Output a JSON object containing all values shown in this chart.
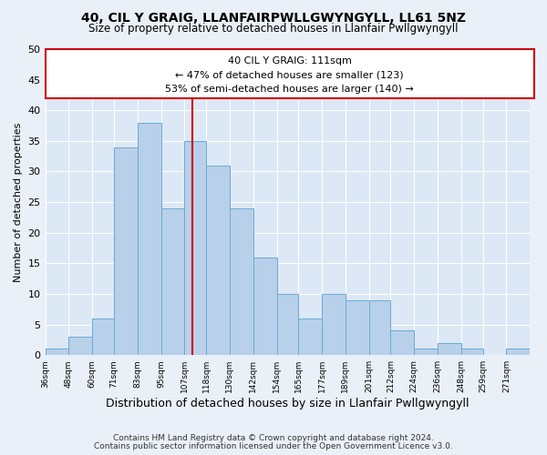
{
  "title": "40, CIL Y GRAIG, LLANFAIRPWLLGWYNGYLL, LL61 5NZ",
  "subtitle": "Size of property relative to detached houses in Llanfair Pwllgwyngyll",
  "xlabel": "Distribution of detached houses by size in Llanfair Pwllgwyngyll",
  "ylabel": "Number of detached properties",
  "bin_starts": [
    36,
    48,
    60,
    71,
    83,
    95,
    107,
    118,
    130,
    142,
    154,
    165,
    177,
    189,
    201,
    212,
    224,
    236,
    248,
    259,
    271
  ],
  "bin_labels": [
    "36sqm",
    "48sqm",
    "60sqm",
    "71sqm",
    "83sqm",
    "95sqm",
    "107sqm",
    "118sqm",
    "130sqm",
    "142sqm",
    "154sqm",
    "165sqm",
    "177sqm",
    "189sqm",
    "201sqm",
    "212sqm",
    "224sqm",
    "236sqm",
    "248sqm",
    "259sqm",
    "271sqm"
  ],
  "bar_heights": [
    1,
    3,
    6,
    34,
    38,
    24,
    35,
    31,
    24,
    16,
    10,
    6,
    10,
    9,
    9,
    4,
    1,
    2,
    1,
    0,
    1
  ],
  "bar_color": "#b8d0ea",
  "bar_edge_color": "#6aaad4",
  "vline_x": 111,
  "vline_color": "#cc0000",
  "annotation_line1": "40 CIL Y GRAIG: 111sqm",
  "annotation_line2": "← 47% of detached houses are smaller (123)",
  "annotation_line3": "53% of semi-detached houses are larger (140) →",
  "annotation_box_edgecolor": "#cc0000",
  "ylim": [
    0,
    50
  ],
  "yticks": [
    0,
    5,
    10,
    15,
    20,
    25,
    30,
    35,
    40,
    45,
    50
  ],
  "xmin": 36,
  "xmax": 283,
  "footer1": "Contains HM Land Registry data © Crown copyright and database right 2024.",
  "footer2": "Contains public sector information licensed under the Open Government Licence v3.0.",
  "bg_color": "#eaf0f8",
  "plot_bg_color": "#dce8f5"
}
